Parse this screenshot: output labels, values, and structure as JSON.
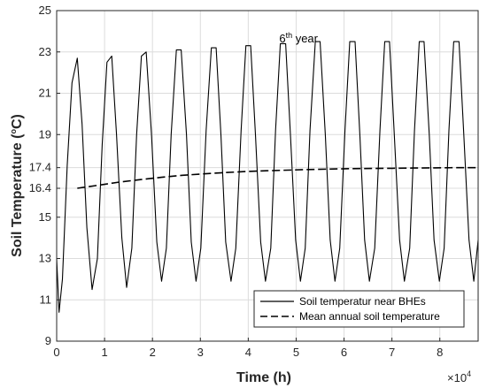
{
  "chart_data": {
    "type": "line",
    "xlabel": "Time (h)",
    "ylabel": "Soil Temperature (",
    "ylabel_sup": "o",
    "ylabel_tail": "C)",
    "x_multiplier": "×10",
    "x_multiplier_exp": "4",
    "xlim": [
      0,
      88000
    ],
    "ylim": [
      9,
      25
    ],
    "grid": true,
    "x_ticks": [
      "0",
      "1",
      "2",
      "3",
      "4",
      "5",
      "6",
      "7",
      "8"
    ],
    "y_ticks": [
      "9",
      "11",
      "13",
      "15",
      "16.4",
      "17.4",
      "19",
      "21",
      "23",
      "25"
    ],
    "annotation": {
      "prefix": "6",
      "sup": "th",
      "suffix": " year",
      "x": 50500,
      "y": 23.45
    },
    "legend_position": "lower-right",
    "series": [
      {
        "name": "Soil temperatur near BHEs",
        "style": "solid",
        "x": [
          0,
          500,
          1200,
          2200,
          3200,
          4300,
          5300,
          6300,
          7400,
          8500,
          9500,
          10500,
          11500,
          12500,
          13600,
          14600,
          15700,
          16700,
          17700,
          18700,
          19800,
          20900,
          21900,
          22900,
          23900,
          25000,
          26000,
          27100,
          28100,
          29100,
          30100,
          31200,
          32300,
          33300,
          34300,
          35300,
          36400,
          37400,
          38500,
          39500,
          40500,
          41500,
          42600,
          43600,
          44700,
          45700,
          46700,
          47800,
          48800,
          49900,
          50900,
          51900,
          52900,
          54000,
          55000,
          56100,
          57100,
          58100,
          59100,
          60200,
          61200,
          62300,
          63300,
          64300,
          65300,
          66400,
          67500,
          68500,
          69500,
          70500,
          71600,
          72600,
          73700,
          74700,
          75700,
          76700,
          77800,
          78800,
          79900,
          80900,
          81900,
          82900,
          84000,
          85000,
          86100,
          87100,
          88000
        ],
        "y": [
          13.0,
          10.4,
          12.0,
          17.5,
          21.5,
          22.7,
          19.5,
          14.5,
          11.5,
          13.0,
          18.5,
          22.5,
          22.8,
          19.0,
          14.0,
          11.6,
          13.5,
          19.0,
          22.8,
          23.0,
          19.0,
          13.8,
          11.9,
          13.5,
          19.0,
          23.1,
          23.1,
          19.0,
          13.8,
          11.9,
          13.5,
          19.2,
          23.2,
          23.2,
          19.0,
          13.8,
          11.9,
          13.5,
          19.2,
          23.3,
          23.3,
          19.0,
          13.8,
          11.9,
          13.5,
          19.2,
          23.4,
          23.4,
          19.0,
          13.9,
          11.9,
          13.5,
          19.2,
          23.5,
          23.5,
          19.0,
          13.9,
          11.9,
          13.5,
          19.2,
          23.5,
          23.5,
          19.0,
          13.9,
          11.9,
          13.5,
          19.2,
          23.5,
          23.5,
          19.0,
          13.9,
          11.9,
          13.5,
          19.2,
          23.5,
          23.5,
          19.0,
          13.9,
          11.9,
          13.5,
          19.2,
          23.5,
          23.5,
          19.0,
          13.9,
          11.9,
          13.9
        ]
      },
      {
        "name": "Mean annual soil temperature",
        "style": "dashed",
        "x": [
          4300,
          8800,
          13100,
          17500,
          21900,
          26300,
          30700,
          35000,
          39400,
          43800,
          48200,
          52600,
          57000,
          61300,
          65700,
          70100,
          74500,
          78900,
          83200,
          88000
        ],
        "y": [
          16.4,
          16.55,
          16.7,
          16.82,
          16.93,
          17.03,
          17.1,
          17.16,
          17.21,
          17.25,
          17.28,
          17.31,
          17.33,
          17.35,
          17.36,
          17.37,
          17.38,
          17.39,
          17.4,
          17.4
        ]
      }
    ]
  }
}
